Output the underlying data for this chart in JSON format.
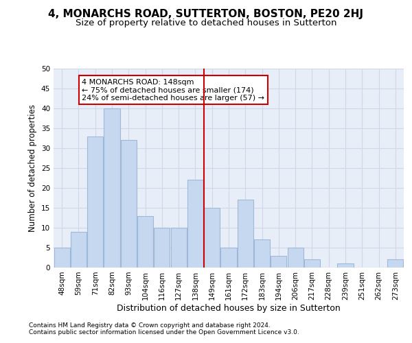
{
  "title": "4, MONARCHS ROAD, SUTTERTON, BOSTON, PE20 2HJ",
  "subtitle": "Size of property relative to detached houses in Sutterton",
  "xlabel": "Distribution of detached houses by size in Sutterton",
  "ylabel": "Number of detached properties",
  "categories": [
    "48sqm",
    "59sqm",
    "71sqm",
    "82sqm",
    "93sqm",
    "104sqm",
    "116sqm",
    "127sqm",
    "138sqm",
    "149sqm",
    "161sqm",
    "172sqm",
    "183sqm",
    "194sqm",
    "206sqm",
    "217sqm",
    "228sqm",
    "239sqm",
    "251sqm",
    "262sqm",
    "273sqm"
  ],
  "values": [
    5,
    9,
    33,
    40,
    32,
    13,
    10,
    10,
    22,
    15,
    5,
    17,
    7,
    3,
    5,
    2,
    0,
    1,
    0,
    0,
    2
  ],
  "bar_color": "#c5d8f0",
  "bar_edge_color": "#a0b8d8",
  "annotation_text": "4 MONARCHS ROAD: 148sqm\n← 75% of detached houses are smaller (174)\n24% of semi-detached houses are larger (57) →",
  "annotation_box_color": "#ffffff",
  "annotation_box_edge": "#cc0000",
  "vline_color": "#cc0000",
  "ylim": [
    0,
    50
  ],
  "yticks": [
    0,
    5,
    10,
    15,
    20,
    25,
    30,
    35,
    40,
    45,
    50
  ],
  "grid_color": "#d0d8e8",
  "background_color": "#e8eef8",
  "footer_line1": "Contains HM Land Registry data © Crown copyright and database right 2024.",
  "footer_line2": "Contains public sector information licensed under the Open Government Licence v3.0.",
  "title_fontsize": 11,
  "subtitle_fontsize": 9.5,
  "tick_fontsize": 7.5,
  "ylabel_fontsize": 8.5,
  "xlabel_fontsize": 9,
  "annotation_fontsize": 8,
  "footer_fontsize": 6.5
}
